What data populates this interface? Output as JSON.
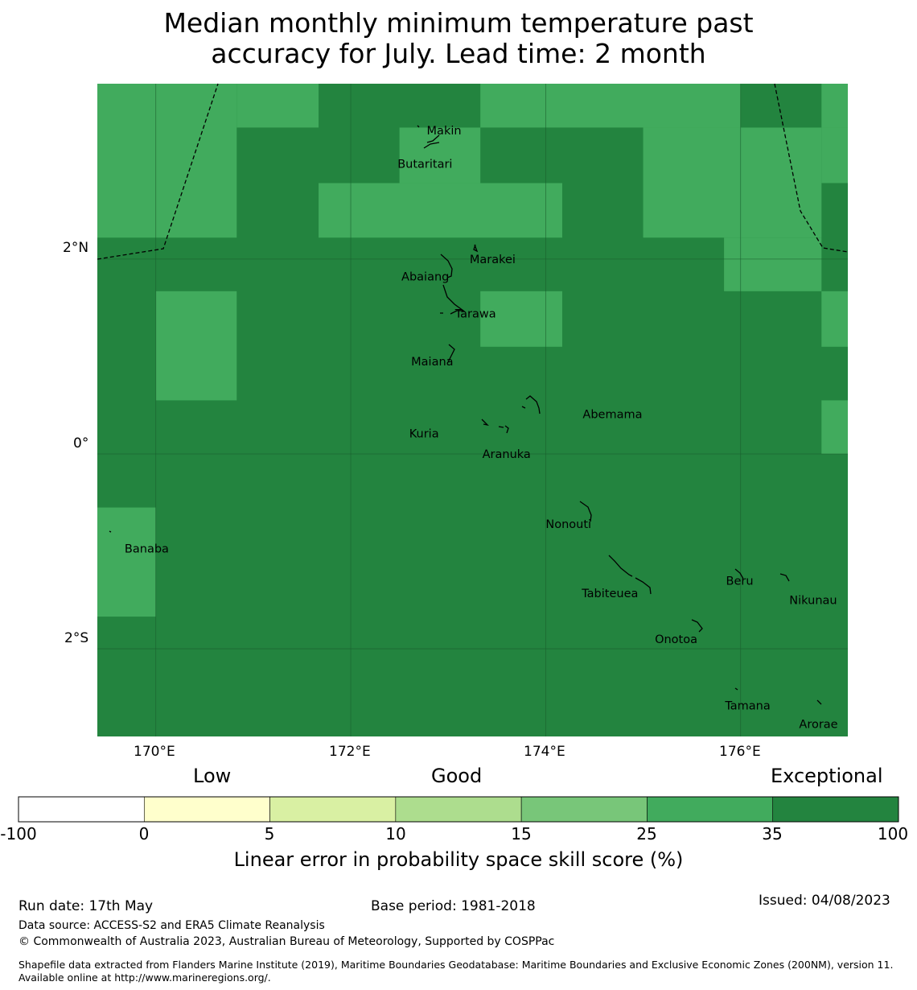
{
  "title": {
    "line1": "Median monthly minimum temperature past",
    "line2": "accuracy for July. Lead time: 2 month"
  },
  "map": {
    "lon_range": [
      169.4,
      177.1
    ],
    "lat_range": [
      -2.9,
      3.8
    ],
    "lat_ticks": [
      {
        "value": 2,
        "label": "2°N"
      },
      {
        "value": 0,
        "label": "0°"
      },
      {
        "value": -2,
        "label": "2°S"
      }
    ],
    "lon_ticks": [
      {
        "value": 170,
        "label": "170°E"
      },
      {
        "value": 172,
        "label": "172°E"
      },
      {
        "value": 174,
        "label": "174°E"
      },
      {
        "value": 176,
        "label": "176°E"
      }
    ],
    "colors": {
      "dark_green": "#23843f",
      "medium_green": "#41ab5d",
      "gridline": "#1a5c2d",
      "boundary": "#000000"
    },
    "skill_cells_note": "Grid cells: value class 25-35 (medium green) else 35-100 (dark green)",
    "medium_cells": [
      {
        "lon": [
          169.4,
          170.83
        ],
        "lat": [
          2.22,
          3.8
        ]
      },
      {
        "lon": [
          170.83,
          171.67
        ],
        "lat": [
          3.35,
          3.8
        ]
      },
      {
        "lon": [
          172.5,
          173.33
        ],
        "lat": [
          2.78,
          3.35
        ]
      },
      {
        "lon": [
          171.67,
          174.17
        ],
        "lat": [
          2.22,
          2.78
        ]
      },
      {
        "lon": [
          173.33,
          176.0
        ],
        "lat": [
          3.35,
          3.8
        ]
      },
      {
        "lon": [
          175.0,
          176.83
        ],
        "lat": [
          2.22,
          3.35
        ]
      },
      {
        "lon": [
          175.83,
          176.83
        ],
        "lat": [
          1.67,
          2.22
        ]
      },
      {
        "lon": [
          176.83,
          177.1
        ],
        "lat": [
          3.35,
          3.8
        ]
      },
      {
        "lon": [
          176.83,
          177.1
        ],
        "lat": [
          2.78,
          3.35
        ]
      },
      {
        "lon": [
          170.0,
          170.83
        ],
        "lat": [
          0.55,
          1.67
        ]
      },
      {
        "lon": [
          173.33,
          174.17
        ],
        "lat": [
          1.1,
          1.67
        ]
      },
      {
        "lon": [
          176.83,
          177.1
        ],
        "lat": [
          1.1,
          1.67
        ]
      },
      {
        "lon": [
          176.83,
          177.1
        ],
        "lat": [
          0.0,
          0.55
        ]
      },
      {
        "lon": [
          169.4,
          170.0
        ],
        "lat": [
          -1.67,
          -0.55
        ]
      }
    ],
    "places": [
      {
        "name": "Makin",
        "lon": 172.78,
        "lat": 3.32
      },
      {
        "name": "Butaritari",
        "lon": 172.48,
        "lat": 2.98
      },
      {
        "name": "Marakei",
        "lon": 173.22,
        "lat": 2.0
      },
      {
        "name": "Abaiang",
        "lon": 172.52,
        "lat": 1.82
      },
      {
        "name": "Tarawa",
        "lon": 173.07,
        "lat": 1.44
      },
      {
        "name": "Maiana",
        "lon": 172.62,
        "lat": 0.95
      },
      {
        "name": "Abemama",
        "lon": 174.38,
        "lat": 0.41
      },
      {
        "name": "Kuria",
        "lon": 172.6,
        "lat": 0.21
      },
      {
        "name": "Aranuka",
        "lon": 173.35,
        "lat": 0.0
      },
      {
        "name": "Nonouti",
        "lon": 174.0,
        "lat": -0.72
      },
      {
        "name": "Banaba",
        "lon": 169.68,
        "lat": -0.97
      },
      {
        "name": "Beru",
        "lon": 175.85,
        "lat": -1.3
      },
      {
        "name": "Tabiteuea",
        "lon": 174.37,
        "lat": -1.43
      },
      {
        "name": "Nikunau",
        "lon": 176.5,
        "lat": -1.5
      },
      {
        "name": "Onotoa",
        "lon": 175.12,
        "lat": -1.9
      },
      {
        "name": "Tamana",
        "lon": 175.84,
        "lat": -2.58
      },
      {
        "name": "Arorae",
        "lon": 176.6,
        "lat": -2.77
      }
    ]
  },
  "colorbar": {
    "categories": {
      "low": "Low",
      "good": "Good",
      "exceptional": "Exceptional"
    },
    "ticks": [
      "-100",
      "0",
      "5",
      "10",
      "15",
      "25",
      "35",
      "100"
    ],
    "colors": [
      "#ffffff",
      "#ffffcc",
      "#d9f0a3",
      "#addd8e",
      "#78c679",
      "#41ab5d",
      "#23843f"
    ],
    "label": "Linear error in probability space skill score (%)"
  },
  "footer": {
    "run_date": "Run date: 17th May",
    "base_period": "Base period: 1981-2018",
    "issued": "Issued: 04/08/2023",
    "data_source": "Data source: ACCESS-S2 and ERA5 Climate Reanalysis",
    "copyright": "© Commonwealth of Australia 2023, Australian Bureau of Meteorology, Supported by COSPPac",
    "shapefile": "Shapefile data extracted from Flanders Marine Institute (2019), Maritime Boundaries Geodatabase: Maritime Boundaries and Exclusive Economic Zones (200NM), version 11. Available online at http://www.marineregions.org/."
  }
}
